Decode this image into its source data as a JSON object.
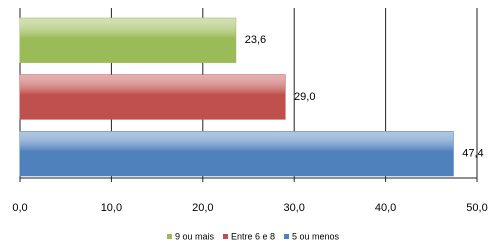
{
  "chart_data": {
    "type": "bar",
    "orientation": "horizontal",
    "series": [
      {
        "name": "9 ou mais",
        "color": "#9bbb59",
        "values": [
          23.6
        ],
        "value_labels": [
          "23,6"
        ]
      },
      {
        "name": "Entre 6 e 8",
        "color": "#c0504d",
        "values": [
          29.0
        ],
        "value_labels": [
          "29,0"
        ]
      },
      {
        "name": "5 ou menos",
        "color": "#4f81bd",
        "values": [
          47.4
        ],
        "value_labels": [
          "47,4"
        ]
      }
    ],
    "xlim": [
      0,
      50
    ],
    "xticks": [
      {
        "value": 0,
        "label": "0,0"
      },
      {
        "value": 10,
        "label": "10,0"
      },
      {
        "value": 20,
        "label": "20,0"
      },
      {
        "value": 30,
        "label": "30,0"
      },
      {
        "value": 40,
        "label": "40,0"
      },
      {
        "value": 50,
        "label": "50,0"
      }
    ],
    "grid": true,
    "legend": "bottom"
  }
}
